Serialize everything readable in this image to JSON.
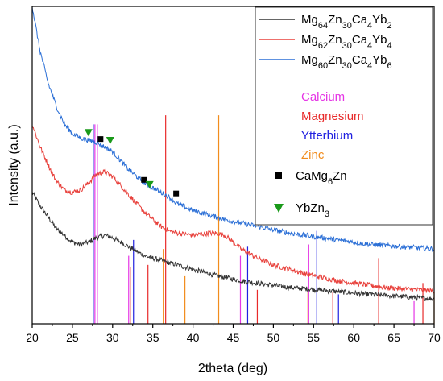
{
  "chart_data": {
    "type": "line",
    "xlabel": "2theta (deg)",
    "ylabel": "Intensity (a.u.)",
    "xlim": [
      20,
      70
    ],
    "x_ticks": [
      20,
      25,
      30,
      35,
      40,
      45,
      50,
      55,
      60,
      65,
      70
    ],
    "y_ticks_shown": false,
    "grid": false,
    "legend_position": "top-right",
    "series": [
      {
        "name_parts": [
          [
            "Mg",
            ""
          ],
          [
            "64",
            "sub"
          ],
          [
            "Zn",
            ""
          ],
          [
            "30",
            "sub"
          ],
          [
            "Ca",
            ""
          ],
          [
            "4",
            "sub"
          ],
          [
            "Yb",
            ""
          ],
          [
            "2",
            "sub"
          ]
        ],
        "color": "#333333",
        "x": [
          20,
          21,
          22,
          23,
          24,
          25,
          26,
          27,
          28,
          29,
          30,
          31,
          32,
          33,
          34,
          35,
          36,
          37,
          38,
          40,
          42,
          44,
          46,
          48,
          50,
          52,
          54,
          56,
          58,
          60,
          62,
          64,
          66,
          68,
          70
        ],
        "y": [
          0.58,
          0.52,
          0.47,
          0.42,
          0.39,
          0.36,
          0.35,
          0.36,
          0.38,
          0.39,
          0.38,
          0.36,
          0.34,
          0.32,
          0.3,
          0.29,
          0.28,
          0.27,
          0.26,
          0.24,
          0.22,
          0.205,
          0.19,
          0.18,
          0.17,
          0.16,
          0.155,
          0.148,
          0.142,
          0.136,
          0.13,
          0.125,
          0.12,
          0.115,
          0.11
        ]
      },
      {
        "name_parts": [
          [
            "Mg",
            ""
          ],
          [
            "62",
            "sub"
          ],
          [
            "Zn",
            ""
          ],
          [
            "30",
            "sub"
          ],
          [
            "Ca",
            ""
          ],
          [
            "4",
            "sub"
          ],
          [
            "Yb",
            ""
          ],
          [
            "4",
            "sub"
          ]
        ],
        "color": "#e8413c",
        "x": [
          20,
          21,
          22,
          23,
          24,
          25,
          26,
          27,
          28,
          29,
          30,
          31,
          32,
          33,
          34,
          35,
          36,
          37,
          38,
          39,
          40,
          41,
          42,
          43,
          44,
          45,
          46,
          47,
          48,
          50,
          52,
          54,
          56,
          58,
          60,
          62,
          64,
          66,
          68,
          70
        ],
        "y": [
          0.88,
          0.78,
          0.7,
          0.63,
          0.59,
          0.58,
          0.59,
          0.62,
          0.66,
          0.67,
          0.65,
          0.61,
          0.57,
          0.53,
          0.49,
          0.46,
          0.43,
          0.41,
          0.4,
          0.395,
          0.39,
          0.395,
          0.4,
          0.4,
          0.39,
          0.36,
          0.33,
          0.31,
          0.29,
          0.26,
          0.24,
          0.22,
          0.205,
          0.19,
          0.18,
          0.17,
          0.16,
          0.155,
          0.15,
          0.145
        ]
      },
      {
        "name_parts": [
          [
            "Mg",
            ""
          ],
          [
            "60",
            "sub"
          ],
          [
            "Zn",
            ""
          ],
          [
            "30",
            "sub"
          ],
          [
            "Ca",
            ""
          ],
          [
            "4",
            "sub"
          ],
          [
            "Yb",
            ""
          ],
          [
            "6",
            "sub"
          ]
        ],
        "color": "#2b6fd6",
        "x": [
          20,
          21,
          22,
          23,
          24,
          25,
          26,
          27,
          28,
          29,
          30,
          31,
          32,
          33,
          34,
          35,
          36,
          37,
          38,
          39,
          40,
          42,
          44,
          46,
          48,
          50,
          52,
          54,
          56,
          58,
          60,
          62,
          64,
          66,
          68,
          70
        ],
        "y": [
          1.4,
          1.2,
          1.06,
          0.96,
          0.88,
          0.84,
          0.82,
          0.81,
          0.8,
          0.78,
          0.76,
          0.72,
          0.68,
          0.65,
          0.62,
          0.6,
          0.58,
          0.56,
          0.53,
          0.515,
          0.5,
          0.48,
          0.46,
          0.445,
          0.43,
          0.415,
          0.4,
          0.39,
          0.38,
          0.37,
          0.36,
          0.35,
          0.345,
          0.34,
          0.335,
          0.33
        ]
      }
    ],
    "reference_legend": [
      {
        "name": "Calcium",
        "color": "#e535e5"
      },
      {
        "name": "Magnesium",
        "color": "#e82a2a"
      },
      {
        "name": "Ytterbium",
        "color": "#2020e0"
      },
      {
        "name": "Zinc",
        "color": "#f28c1c"
      }
    ],
    "reference_lines": [
      {
        "x": 27.8,
        "height": 0.88,
        "color": "#e535e5"
      },
      {
        "x": 28.1,
        "height": 0.88,
        "color": "#e535e5"
      },
      {
        "x": 32.0,
        "height": 0.3,
        "color": "#e535e5"
      },
      {
        "x": 45.9,
        "height": 0.3,
        "color": "#e535e5"
      },
      {
        "x": 54.4,
        "height": 0.35,
        "color": "#e535e5"
      },
      {
        "x": 67.5,
        "height": 0.1,
        "color": "#e535e5"
      },
      {
        "x": 32.2,
        "height": 0.25,
        "color": "#e82a2a"
      },
      {
        "x": 34.4,
        "height": 0.26,
        "color": "#e82a2a"
      },
      {
        "x": 36.6,
        "height": 0.92,
        "color": "#e82a2a"
      },
      {
        "x": 48.0,
        "height": 0.15,
        "color": "#e82a2a"
      },
      {
        "x": 57.4,
        "height": 0.14,
        "color": "#e82a2a"
      },
      {
        "x": 63.1,
        "height": 0.29,
        "color": "#e82a2a"
      },
      {
        "x": 68.6,
        "height": 0.18,
        "color": "#e82a2a"
      },
      {
        "x": 27.6,
        "height": 0.88,
        "color": "#2020e0"
      },
      {
        "x": 32.6,
        "height": 0.37,
        "color": "#2020e0"
      },
      {
        "x": 46.8,
        "height": 0.34,
        "color": "#2020e0"
      },
      {
        "x": 55.4,
        "height": 0.41,
        "color": "#2020e0"
      },
      {
        "x": 58.1,
        "height": 0.13,
        "color": "#2020e0"
      },
      {
        "x": 36.3,
        "height": 0.33,
        "color": "#f28c1c"
      },
      {
        "x": 39.0,
        "height": 0.21,
        "color": "#f28c1c"
      },
      {
        "x": 43.2,
        "height": 0.92,
        "color": "#f28c1c"
      },
      {
        "x": 54.3,
        "height": 0.14,
        "color": "#f28c1c"
      },
      {
        "x": 70.0,
        "height": 0.14,
        "color": "#f28c1c"
      }
    ],
    "phase_markers": [
      {
        "name_parts": [
          [
            "CaMg",
            ""
          ],
          [
            "6",
            "sub"
          ],
          [
            "Zn",
            ""
          ]
        ],
        "symbol": "square",
        "color": "#000000",
        "points": [
          {
            "x": 28.5,
            "y": 0.815
          },
          {
            "x": 33.9,
            "y": 0.635
          },
          {
            "x": 37.9,
            "y": 0.575
          }
        ]
      },
      {
        "name_parts": [
          [
            "YbZn",
            ""
          ],
          [
            "3",
            "sub"
          ]
        ],
        "symbol": "triangle-down",
        "color": "#1a9a1a",
        "points": [
          {
            "x": 27.0,
            "y": 0.845
          },
          {
            "x": 29.7,
            "y": 0.81
          },
          {
            "x": 34.6,
            "y": 0.615
          }
        ]
      }
    ]
  }
}
